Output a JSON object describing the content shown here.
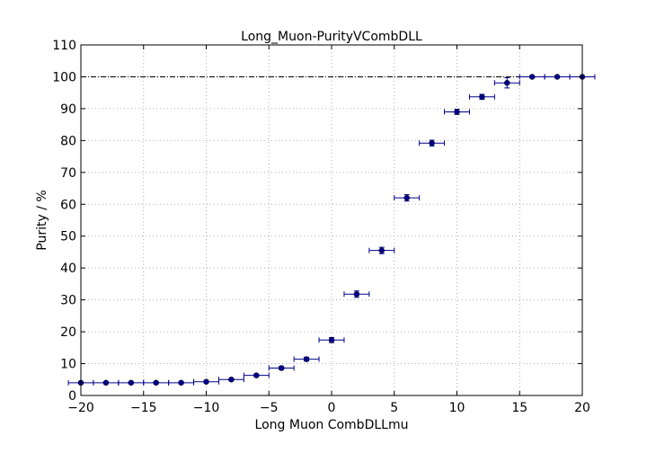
{
  "chart_data": {
    "type": "scatter",
    "title": "Long_Muon-PurityVCombDLL",
    "xlabel": "Long Muon CombDLLmu",
    "ylabel": "Purity / %",
    "xlim": [
      -20,
      20
    ],
    "ylim": [
      0,
      110
    ],
    "xticks": [
      -20,
      -15,
      -10,
      -5,
      0,
      5,
      10,
      15,
      20
    ],
    "yticks": [
      0,
      10,
      20,
      30,
      40,
      50,
      60,
      70,
      80,
      90,
      100,
      110
    ],
    "grid": true,
    "reference_line": 100,
    "series": [
      {
        "x": [
          -20,
          -18,
          -16,
          -14,
          -12,
          -10,
          -8,
          -6,
          -4,
          -2,
          0,
          2,
          4,
          6,
          8,
          10,
          12,
          14,
          16,
          18,
          20
        ],
        "y": [
          4.0,
          4.0,
          4.0,
          4.0,
          4.0,
          4.3,
          5.0,
          6.3,
          8.6,
          11.4,
          17.4,
          31.8,
          45.5,
          62.0,
          79.2,
          89.0,
          93.7,
          98.1,
          100,
          100,
          100
        ],
        "xerr": [
          1,
          1,
          1,
          1,
          1,
          1,
          1,
          1,
          1,
          1,
          1,
          1,
          1,
          1,
          1,
          1,
          1,
          1,
          1,
          1,
          1
        ],
        "yerr": [
          0.3,
          0.3,
          0.3,
          0.3,
          0.3,
          0.3,
          0.3,
          0.4,
          0.5,
          0.6,
          0.8,
          1.0,
          1.0,
          1.0,
          0.9,
          0.8,
          0.8,
          1.6,
          0.2,
          0.2,
          0.2
        ]
      }
    ]
  },
  "colors": {
    "marker": "#00008b",
    "axis": "#000000",
    "grid": "#b0b0b0"
  }
}
